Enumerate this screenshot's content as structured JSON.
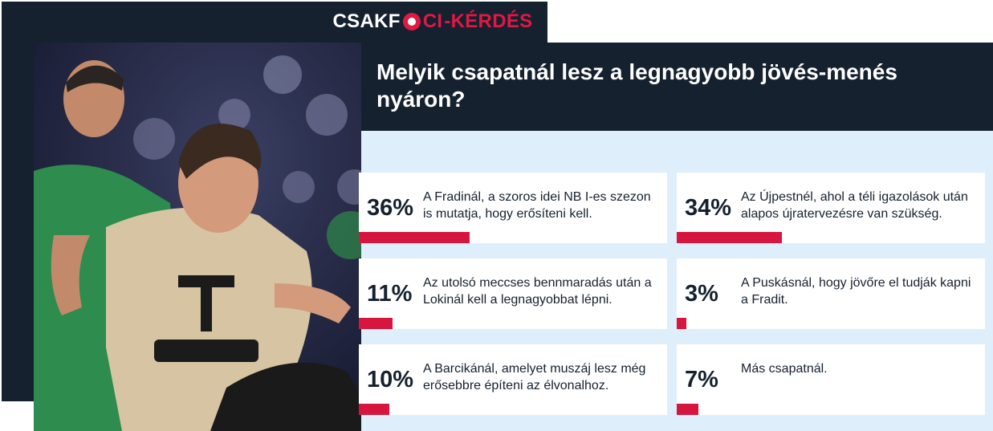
{
  "brand": {
    "part1": "CSAKF",
    "ball_icon": "soccer-ball-icon",
    "part2": "CI",
    "part3": "-KÉRDÉS",
    "accent_color": "#e01844",
    "dark_color": "#15212f"
  },
  "question": "Melyik csapatnál lesz a legnagyobb jövés-menés nyáron?",
  "options": [
    {
      "percent": "36%",
      "value": 36,
      "text": "A Fradinál, a szoros idei NB I-es szezon is mutatja, hogy erősíteni kell."
    },
    {
      "percent": "34%",
      "value": 34,
      "text": "Az Újpestnél, ahol a téli igazolások után alapos újratervezésre van szükség."
    },
    {
      "percent": "11%",
      "value": 11,
      "text": "Az utolsó meccses bennmaradás után a Lokinál kell a legnagyobbat lépni."
    },
    {
      "percent": "3%",
      "value": 3,
      "text": "A Puskásnál, hogy jövőre el tudják kapni a Fradit."
    },
    {
      "percent": "10%",
      "value": 10,
      "text": "A Barcikánál, amelyet muszáj lesz még erősebbre építeni az élvonalhoz."
    },
    {
      "percent": "7%",
      "value": 7,
      "text": "Más csapatnál."
    }
  ]
}
